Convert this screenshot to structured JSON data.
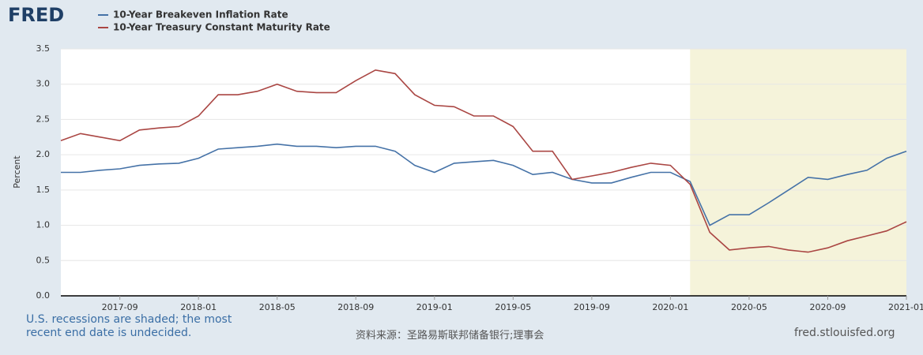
{
  "logo": "FRED",
  "chart_data": {
    "type": "line",
    "y_label": "Percent",
    "x": [
      "2017-06",
      "2017-07",
      "2017-08",
      "2017-09",
      "2017-10",
      "2017-11",
      "2017-12",
      "2018-01",
      "2018-02",
      "2018-03",
      "2018-04",
      "2018-05",
      "2018-06",
      "2018-07",
      "2018-08",
      "2018-09",
      "2018-10",
      "2018-11",
      "2018-12",
      "2019-01",
      "2019-02",
      "2019-03",
      "2019-04",
      "2019-05",
      "2019-06",
      "2019-07",
      "2019-08",
      "2019-09",
      "2019-10",
      "2019-11",
      "2019-12",
      "2020-01",
      "2020-02",
      "2020-03",
      "2020-04",
      "2020-05",
      "2020-06",
      "2020-07",
      "2020-08",
      "2020-09",
      "2020-10",
      "2020-11",
      "2020-12",
      "2021-01"
    ],
    "series": [
      {
        "name": "10-Year Breakeven Inflation Rate",
        "color": "#4572a7",
        "values": [
          1.75,
          1.75,
          1.78,
          1.8,
          1.85,
          1.87,
          1.88,
          1.95,
          2.08,
          2.1,
          2.12,
          2.15,
          2.12,
          2.12,
          2.1,
          2.12,
          2.12,
          2.05,
          1.85,
          1.75,
          1.88,
          1.9,
          1.92,
          1.85,
          1.72,
          1.75,
          1.65,
          1.6,
          1.6,
          1.68,
          1.75,
          1.75,
          1.62,
          1.0,
          1.15,
          1.15,
          1.32,
          1.5,
          1.68,
          1.65,
          1.72,
          1.78,
          1.95,
          2.05
        ]
      },
      {
        "name": "10-Year Treasury Constant Maturity Rate",
        "color": "#aa4643",
        "values": [
          2.2,
          2.3,
          2.25,
          2.2,
          2.35,
          2.38,
          2.4,
          2.55,
          2.85,
          2.85,
          2.9,
          3.0,
          2.9,
          2.88,
          2.88,
          3.05,
          3.2,
          3.15,
          2.85,
          2.7,
          2.68,
          2.55,
          2.55,
          2.4,
          2.05,
          2.05,
          1.65,
          1.7,
          1.75,
          1.82,
          1.88,
          1.85,
          1.58,
          0.9,
          0.65,
          0.68,
          0.7,
          0.65,
          0.62,
          0.68,
          0.78,
          0.85,
          0.92,
          1.05
        ]
      }
    ],
    "xlim": [
      "2017-06",
      "2021-01"
    ],
    "xticks": [
      "2017-09",
      "2018-01",
      "2018-05",
      "2018-09",
      "2019-01",
      "2019-05",
      "2019-09",
      "2020-01",
      "2020-05",
      "2020-09",
      "2021-01"
    ],
    "ylim": [
      0,
      3.5
    ],
    "yticks": [
      {
        "value": 0,
        "label": "0.0"
      },
      0.5,
      {
        "value": 1,
        "label": "1.0"
      },
      1.5,
      {
        "value": 2,
        "label": "2.0"
      },
      2.5,
      {
        "value": 3,
        "label": "3.0"
      },
      3.5
    ],
    "grid": true,
    "recession_start": "2020-02",
    "recession_color": "#f5f3da"
  },
  "footer": {
    "note": "U.S. recessions are shaded; the most recent end date is undecided.",
    "source": "资料来源：圣路易斯联邦储备银行;理事会",
    "site": "fred.stlouisfed.org"
  }
}
